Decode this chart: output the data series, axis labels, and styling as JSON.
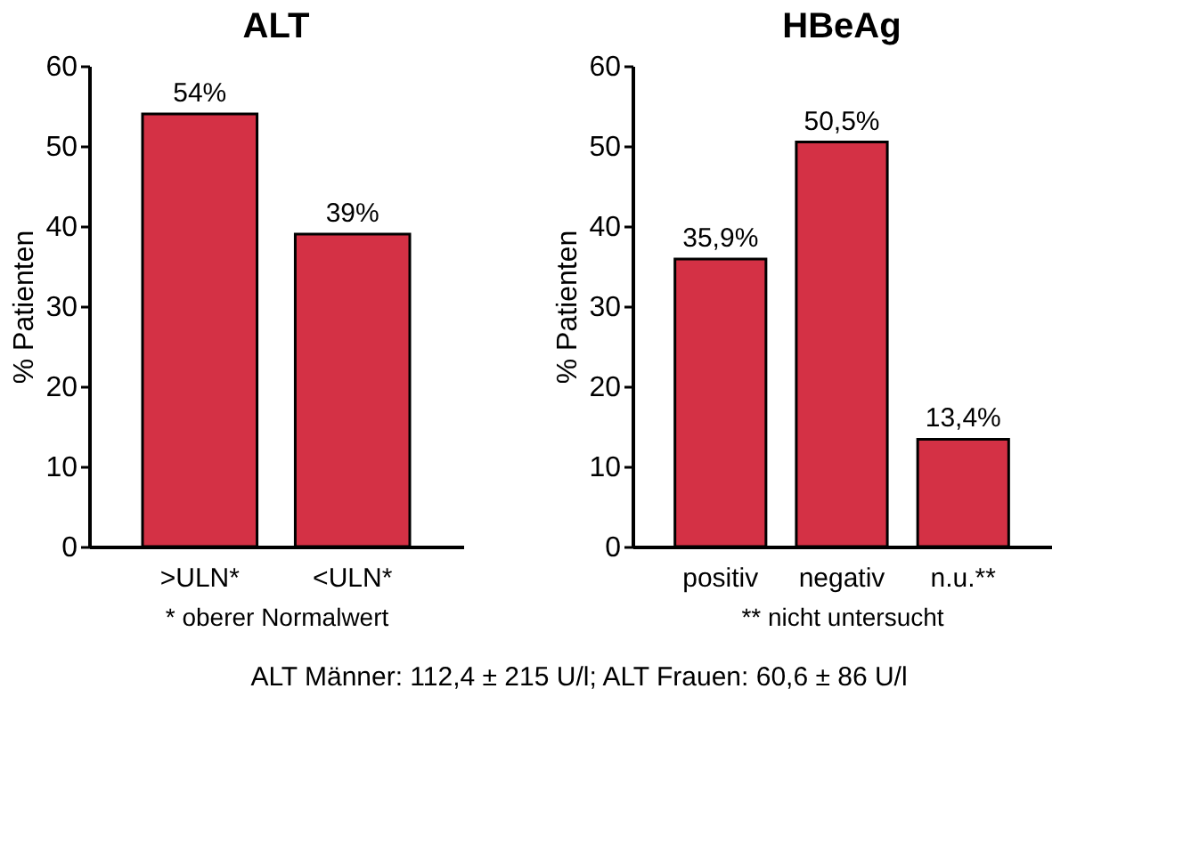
{
  "chart_data": [
    {
      "type": "bar",
      "title": "ALT",
      "ylabel": "% Patienten",
      "categories": [
        ">ULN*",
        "<ULN*"
      ],
      "values": [
        54,
        39
      ],
      "color": "#d43145",
      "value_labels": [
        "54%",
        "39%"
      ],
      "ylim": [
        0,
        60
      ],
      "yticks": [
        0,
        10,
        20,
        30,
        40,
        50,
        60
      ],
      "grid": false,
      "annotations": [
        "* oberer Normalwert"
      ]
    },
    {
      "type": "bar",
      "title": "HBeAg",
      "ylabel": "% Patienten",
      "categories": [
        "positiv",
        "negativ",
        "n.u.**"
      ],
      "values": [
        35.9,
        50.5,
        13.4
      ],
      "color": "#d43145",
      "value_labels": [
        "35,9%",
        "50,5%",
        "13,4%"
      ],
      "ylim": [
        0,
        60
      ],
      "yticks": [
        0,
        10,
        20,
        30,
        40,
        50,
        60
      ],
      "grid": false,
      "annotations": [
        "** nicht untersucht"
      ]
    },
    {
      "type": "other",
      "annotations": [
        "ALT Männer: 112,4 ± 215 U/l; ALT Frauen: 60,6 ± 86 U/l"
      ]
    }
  ]
}
